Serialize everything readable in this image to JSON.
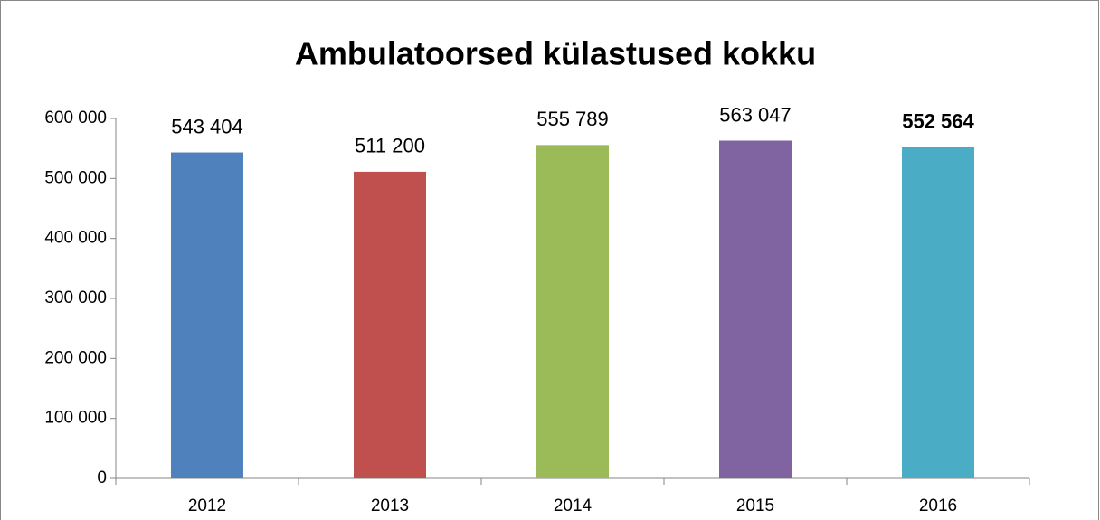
{
  "chart_data": {
    "type": "bar",
    "title": "Ambulatoorsed külastused kokku",
    "categories": [
      "2012",
      "2013",
      "2014",
      "2015",
      "2016"
    ],
    "values": [
      543404,
      511200,
      555789,
      563047,
      552564
    ],
    "value_labels": [
      "543 404",
      "511 200",
      "555 789",
      "563 047",
      "552 564"
    ],
    "value_label_bold": [
      false,
      false,
      false,
      false,
      true
    ],
    "colors": [
      "#4f81bd",
      "#c0504d",
      "#9bbb59",
      "#8064a2",
      "#4bacc6"
    ],
    "ylim": [
      0,
      600000
    ],
    "yticks": [
      {
        "value": 0,
        "label": "0"
      },
      {
        "value": 100000,
        "label": "100 000"
      },
      {
        "value": 200000,
        "label": "200 000"
      },
      {
        "value": 300000,
        "label": "300 000"
      },
      {
        "value": 400000,
        "label": "400 000"
      },
      {
        "value": 500000,
        "label": "500 000"
      },
      {
        "value": 600000,
        "label": "600 000"
      }
    ],
    "grid": false
  }
}
